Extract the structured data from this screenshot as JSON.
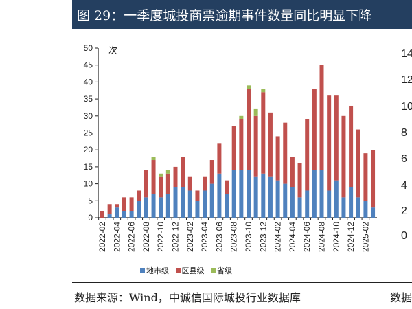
{
  "title": "图 29：一季度城投商票逾期事件数量同比明显下降",
  "source": "数据来源：Wind，中诚信国际城投行业数据库",
  "source_right_partial": "数据",
  "right_axis_partial_labels": [
    "14",
    "12",
    "10",
    "8",
    "6",
    "4",
    "2",
    "0"
  ],
  "chart_data": {
    "type": "bar",
    "stacked": true,
    "ylabel": "次",
    "ylim": [
      0,
      50
    ],
    "yticks": [
      0,
      5,
      10,
      15,
      20,
      25,
      30,
      35,
      40,
      45,
      50
    ],
    "grid": false,
    "legend_position": "bottom",
    "categories": [
      "2022-02",
      "2022-03",
      "2022-04",
      "2022-05",
      "2022-06",
      "2022-07",
      "2022-08",
      "2022-09",
      "2022-10",
      "2022-11",
      "2022-12",
      "2023-01",
      "2023-02",
      "2023-03",
      "2023-04",
      "2023-05",
      "2023-06",
      "2023-07",
      "2023-08",
      "2023-09",
      "2023-10",
      "2023-11",
      "2023-12",
      "2024-01",
      "2024-02",
      "2024-03",
      "2024-04",
      "2024-05",
      "2024-06",
      "2024-07",
      "2024-08",
      "2024-09",
      "2024-10",
      "2024-11",
      "2024-12",
      "2025-01",
      "2025-02",
      "2025-03"
    ],
    "tick_labels": [
      "2022-02",
      "2022-04",
      "2022-06",
      "2022-08",
      "2022-10",
      "2022-12",
      "2023-02",
      "2023-04",
      "2023-06",
      "2023-08",
      "2023-10",
      "2023-12",
      "2024-02",
      "2024-04",
      "2024-06",
      "2024-08",
      "2024-10",
      "2024-12",
      "2025-02"
    ],
    "series": [
      {
        "name": "地市级",
        "color": "#4f81bd",
        "values": [
          0,
          1,
          3,
          2,
          2,
          5,
          6,
          7,
          6,
          7,
          9,
          9,
          8,
          5,
          8,
          10,
          13,
          7,
          14,
          14,
          14,
          12,
          13,
          12,
          11,
          10,
          9,
          6,
          8,
          14,
          14,
          8,
          11,
          6,
          9,
          6,
          5,
          3
        ]
      },
      {
        "name": "区县级",
        "color": "#c0504d",
        "values": [
          2,
          3,
          1,
          4,
          4,
          3,
          8,
          10,
          6,
          6,
          6,
          9,
          4,
          3,
          4,
          7,
          9,
          4,
          13,
          15,
          24,
          18,
          24,
          19,
          13,
          18,
          9,
          10,
          21,
          24,
          31,
          28,
          25,
          24,
          24,
          20,
          14,
          17
        ]
      },
      {
        "name": "省级",
        "color": "#9bbb59",
        "values": [
          0,
          0,
          0,
          0,
          0,
          0,
          0,
          1,
          1,
          1,
          0,
          0,
          0,
          0,
          0,
          0,
          0,
          0,
          0,
          1,
          1,
          2,
          1,
          0,
          0,
          0,
          0,
          0,
          0,
          0,
          0,
          0,
          0,
          0,
          0,
          0,
          0,
          0
        ]
      }
    ]
  }
}
